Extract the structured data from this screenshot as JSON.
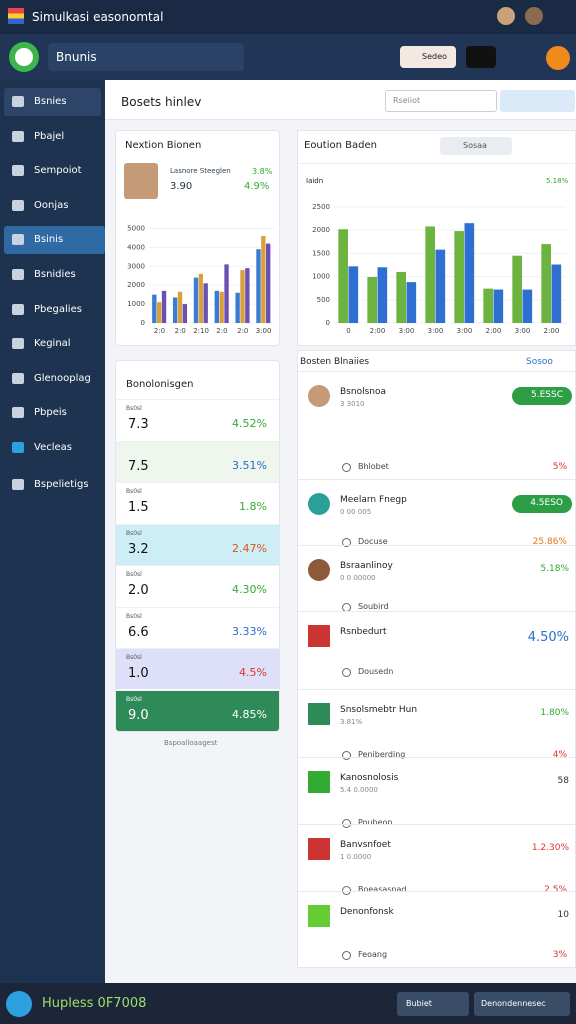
{
  "topbar": {
    "title": "Simulkasi easonomtal"
  },
  "header": {
    "brand": "Bnunis",
    "button": "Sedeo"
  },
  "sidebar": {
    "items": [
      "Bsnies",
      "Pbajel",
      "Sempoiot",
      "Oonjas",
      "Bsinis",
      "Bsnidies",
      "Pbegalies",
      "Keginal",
      "Glenooplag",
      "Pbpeis",
      "Vecleas",
      "Bspelietigs"
    ],
    "active": 4
  },
  "content": {
    "title": "Bosets hinlev",
    "search": "Rseiiot"
  },
  "profile_card": {
    "title": "Nextion Bionen",
    "name": "Lasnore Steeglen",
    "value": "3.90",
    "change": "3.8%",
    "change2": "4.9%"
  },
  "chart_left": {
    "type": "bar",
    "categories": [
      "2:0",
      "2:0",
      "2:10",
      "2:0",
      "2:0",
      "3:00"
    ],
    "series": [
      {
        "color": "#3a7bd5",
        "values": [
          1500,
          1350,
          2400,
          1700,
          1600,
          3900
        ]
      },
      {
        "color": "#d9a03a",
        "values": [
          1100,
          1650,
          2600,
          1650,
          2800,
          4600
        ]
      },
      {
        "color": "#6b4fb3",
        "values": [
          1700,
          1000,
          2100,
          3100,
          2900,
          4200
        ]
      }
    ],
    "ylim": [
      0,
      5500
    ],
    "yticks": [
      0,
      1000,
      2000,
      3000,
      4000,
      5000
    ]
  },
  "chart_card": {
    "title": "Eoution Baden",
    "button": "Sosaa",
    "legend": "Iaidn",
    "legend_value": "5.18%"
  },
  "chart_right": {
    "type": "bar",
    "categories": [
      "0",
      "2:00",
      "3:00",
      "3:00",
      "3:00",
      "2:00",
      "3:00",
      "2:00"
    ],
    "series": [
      {
        "color": "#6cb33f",
        "values": [
          2020,
          990,
          1100,
          2080,
          1980,
          740,
          1450,
          1700
        ]
      },
      {
        "color": "#2f6fd1",
        "values": [
          1220,
          1200,
          880,
          1580,
          2150,
          720,
          720,
          1260
        ]
      }
    ],
    "ylim": [
      0,
      2800
    ],
    "yticks": [
      0,
      500,
      1000,
      1500,
      2000,
      2500
    ]
  },
  "stats_card": {
    "title": "Bonolonisgen",
    "rows": [
      {
        "label": "Bs0sl",
        "value": "7.3",
        "change": "4.52%"
      },
      {
        "label": "",
        "value": "7.5",
        "change": "3.51%"
      },
      {
        "label": "Bs0sl",
        "value": "1.5",
        "change": "1.8%"
      },
      {
        "label": "Bs0sl",
        "value": "3.2",
        "change": "2.47%"
      },
      {
        "label": "Bs0sl",
        "value": "2.0",
        "change": "4.30%"
      },
      {
        "label": "Bs0sl",
        "value": "6.6",
        "change": "3.33%"
      },
      {
        "label": "Bs0sl",
        "value": "1.0",
        "change": "4.5%"
      },
      {
        "label": "Bs0sl",
        "value": "9.0",
        "change": "4.85%"
      }
    ],
    "footer": "Bspoalloaagest"
  },
  "list_card": {
    "title": "Bosten Blnaiies",
    "action": "Sosoo",
    "items": [
      {
        "title": "Bsnolsnoa",
        "subtitle": "3 3010",
        "value": "5.ESSC",
        "detail": "Bhlobet",
        "detail_value": "5%"
      },
      {
        "title": "Meelarn Fnegp",
        "subtitle": "0 00 005",
        "value": "4.5ESO",
        "detail": "Docuse",
        "detail_value": "25.86%"
      },
      {
        "title": "Bsraanlinoy",
        "subtitle": "0 0 00000",
        "value": "5.18%",
        "detail": "Soubird",
        "detail_value": ""
      },
      {
        "title": "Rsnbedurt",
        "subtitle": "",
        "value": "4.50%",
        "detail": "Dousedn",
        "detail_value": ""
      },
      {
        "title": "Snsolsmebtr Hun",
        "subtitle": "3.81%",
        "value": "1.80%",
        "detail": "Peniberding",
        "detail_value": "4%"
      },
      {
        "title": "Kanosnolosis",
        "subtitle": "5.4 0.0000",
        "value": "58",
        "detail": "Poubeon",
        "detail_value": ""
      },
      {
        "title": "Banvsnfoet",
        "subtitle": "1 0.0000",
        "value": "1.2.30%",
        "detail": "Boeasasnad",
        "detail_value": "2.5%"
      },
      {
        "title": "Denonfonsk",
        "subtitle": "",
        "value": "10",
        "detail": "Feoang",
        "detail_value": "3%"
      }
    ]
  },
  "footer": {
    "status": "Hupless 0F7008",
    "button1": "Bubiet",
    "button2": "Denondennesec"
  }
}
